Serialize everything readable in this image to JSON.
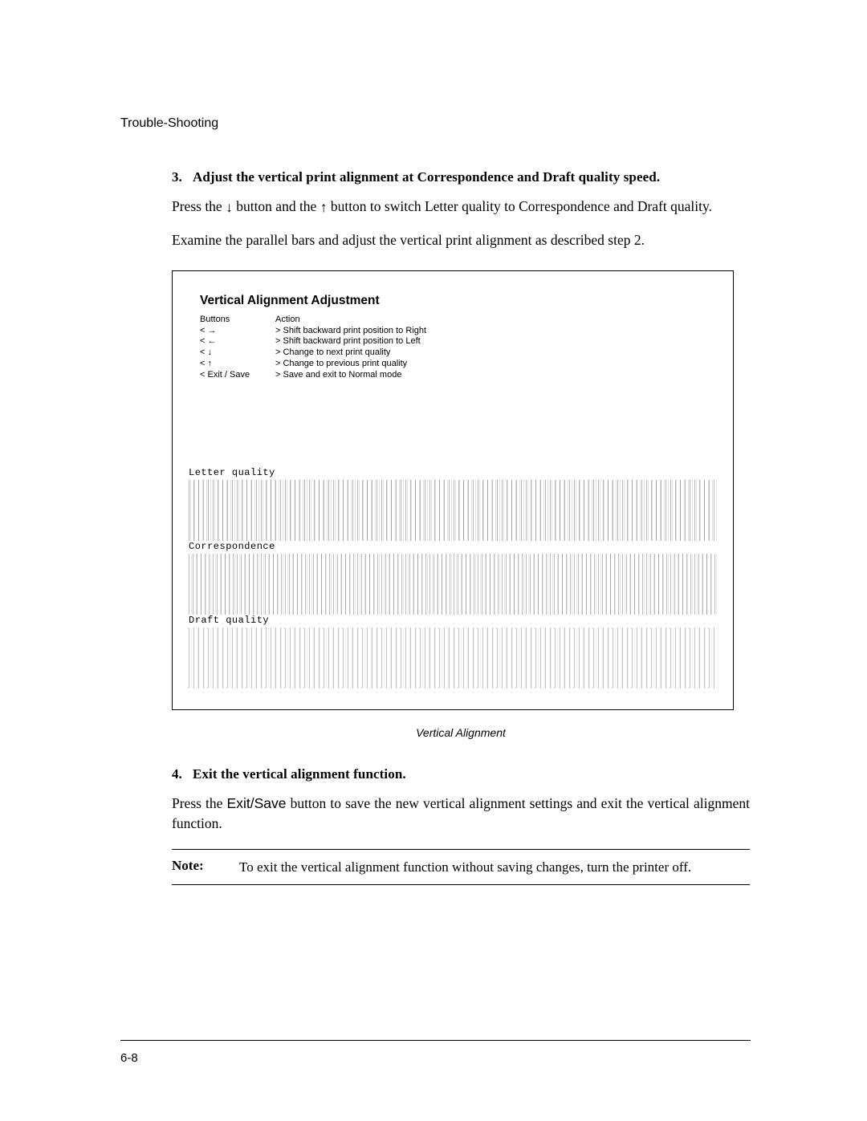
{
  "chapter_header": "Trouble-Shooting",
  "step3": {
    "num": "3.",
    "title": "Adjust the vertical print alignment at Correspondence and Draft quality speed.",
    "para1_a": "Press the ",
    "para1_b": " button and the ",
    "para1_c": " button to switch Letter quality to Correspondence and Draft quality.",
    "arrow_down": "↓",
    "arrow_up": "↑",
    "para2": "Examine the parallel bars and adjust the vertical print alignment as described step 2."
  },
  "figure": {
    "title": "Vertical Alignment Adjustment",
    "col_left_header": "Buttons",
    "col_right_header": "Action",
    "rows": [
      {
        "btn": "< →",
        "sym": "→",
        "action": ">  Shift backward print position to Right"
      },
      {
        "btn": "< ←",
        "sym": "←",
        "action": ">  Shift backward print position to Left"
      },
      {
        "btn": "< ↓",
        "sym": "↓",
        "action": ">  Change to next print quality"
      },
      {
        "btn": "< ↑",
        "sym": "↑",
        "action": ">  Change to previous print quality"
      },
      {
        "btn": "< Exit / Save",
        "sym": "",
        "action": ">  Save and exit to Normal mode"
      }
    ],
    "exit_label": "< Exit / Save",
    "patterns": [
      {
        "label": "Letter quality",
        "cls": ""
      },
      {
        "label": "Correspondence",
        "cls": "noisy"
      },
      {
        "label": "Draft quality",
        "cls": "noisier"
      }
    ],
    "caption": "Vertical  Alignment"
  },
  "step4": {
    "num": "4.",
    "title": "Exit the vertical alignment function.",
    "para_a": "Press the ",
    "exit_save": "Exit/Save",
    "para_b": " button to save the new vertical alignment settings and exit the vertical alignment function."
  },
  "note": {
    "label": "Note:",
    "text": "To exit the vertical alignment function without saving changes, turn the printer off."
  },
  "page_num": "6-8"
}
